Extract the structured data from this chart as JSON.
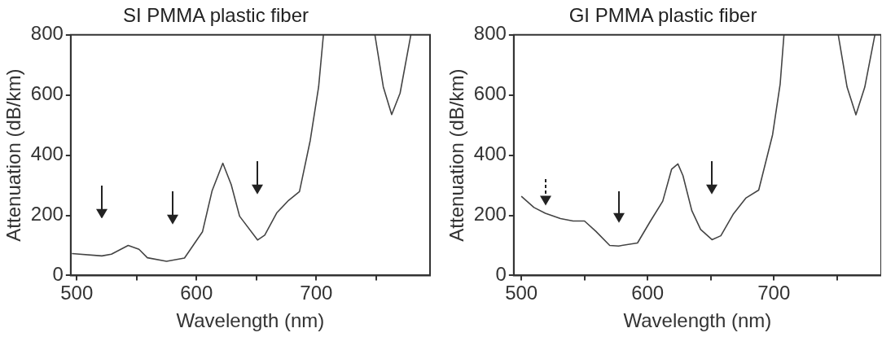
{
  "chart_data": [
    {
      "type": "line",
      "title": "SI PMMA plastic fiber",
      "xlabel": "Wavelength (nm)",
      "ylabel": "Attenuation (dB/km)",
      "xlim": [
        495,
        795
      ],
      "xticks": [
        500,
        {
          "value": 550,
          "label": null
        },
        600,
        {
          "value": 650,
          "label": null
        },
        700,
        {
          "value": 750,
          "label": null
        }
      ],
      "ylim": [
        0,
        800
      ],
      "yticks": [
        0,
        200,
        400,
        600,
        800
      ],
      "grid": false,
      "legend": false,
      "marker": "none",
      "line_style": "solid",
      "series": [
        {
          "color": "#444444",
          "x": [
            496,
            521,
            529,
            543,
            552,
            559,
            575,
            590,
            605,
            613,
            622,
            629,
            636,
            651,
            657,
            667,
            677,
            686,
            695,
            702,
            706,
            720,
            749,
            756,
            763,
            770,
            779
          ],
          "values": [
            73,
            65,
            71,
            100,
            87,
            59,
            47,
            58,
            145,
            281,
            373,
            302,
            197,
            118,
            134,
            208,
            250,
            279,
            449,
            627,
            800,
            null,
            800,
            627,
            535,
            606,
            800
          ]
        }
      ]
    },
    {
      "type": "line",
      "title": "GI PMMA plastic fiber",
      "xlabel": "Wavelength (nm)",
      "ylabel": "Attenuation (dB/km)",
      "xlim": [
        494,
        785
      ],
      "xticks": [
        500,
        {
          "value": 550,
          "label": null
        },
        600,
        {
          "value": 650,
          "label": null
        },
        700,
        {
          "value": 750,
          "label": null
        }
      ],
      "ylim": [
        0,
        800
      ],
      "yticks": [
        0,
        200,
        400,
        600,
        800
      ],
      "grid": false,
      "legend": false,
      "marker": "none",
      "line_style": "solid",
      "series": [
        {
          "color": "#444444",
          "x": [
            500,
            510,
            519,
            531,
            541,
            550,
            559,
            570,
            577,
            592,
            602,
            612,
            619,
            624,
            628,
            635,
            642,
            651,
            658,
            668,
            678,
            688,
            699,
            705,
            708,
            730,
            751,
            758,
            765,
            772,
            780
          ],
          "values": [
            263,
            226,
            207,
            189,
            181,
            181,
            147,
            100,
            98,
            108,
            179,
            247,
            353,
            371,
            332,
            216,
            153,
            119,
            132,
            205,
            258,
            284,
            468,
            637,
            800,
            null,
            800,
            626,
            534,
            626,
            800
          ]
        }
      ]
    }
  ]
}
